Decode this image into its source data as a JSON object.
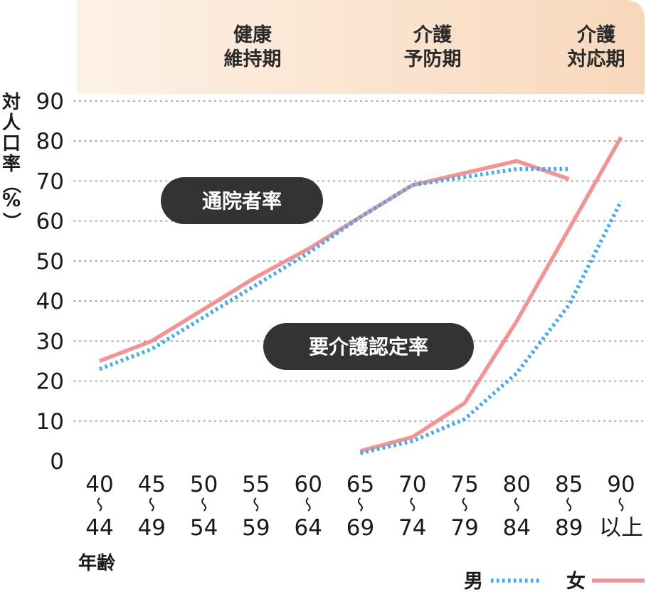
{
  "chart_data": {
    "type": "line",
    "title": "",
    "ylabel": "対人口率（%）",
    "xlabel": "年齢",
    "ylim": [
      0,
      90
    ],
    "y_ticks": [
      "0",
      "10",
      "20",
      "30",
      "40",
      "50",
      "60",
      "70",
      "80",
      "90"
    ],
    "grid": "horizontal dotted",
    "categories": [
      {
        "top": "40",
        "bottom": "44"
      },
      {
        "top": "45",
        "bottom": "49"
      },
      {
        "top": "50",
        "bottom": "54"
      },
      {
        "top": "55",
        "bottom": "59"
      },
      {
        "top": "60",
        "bottom": "64"
      },
      {
        "top": "65",
        "bottom": "69"
      },
      {
        "top": "70",
        "bottom": "74"
      },
      {
        "top": "75",
        "bottom": "79"
      },
      {
        "top": "80",
        "bottom": "84"
      },
      {
        "top": "85",
        "bottom": "89"
      },
      {
        "top": "90",
        "bottom": "以上"
      }
    ],
    "stages": [
      {
        "line1": "健康",
        "line2": "維持期"
      },
      {
        "line1": "介護",
        "line2": "予防期"
      },
      {
        "line1": "介護",
        "line2": "対応期"
      }
    ],
    "stage_band_color": "#fbe3cc",
    "groups": [
      {
        "label": "通院者率",
        "series": [
          {
            "name": "男",
            "values": [
              23,
              28,
              36,
              44,
              52,
              61,
              69,
              71,
              73,
              73,
              null
            ]
          },
          {
            "name": "女",
            "values": [
              25,
              30,
              38,
              46,
              53,
              61,
              69,
              72,
              75,
              70.5,
              null
            ]
          }
        ]
      },
      {
        "label": "要介護認定率",
        "series": [
          {
            "name": "男",
            "values": [
              null,
              null,
              null,
              null,
              null,
              2,
              5,
              10.5,
              22,
              39,
              65
            ]
          },
          {
            "name": "女",
            "values": [
              null,
              null,
              null,
              null,
              null,
              2.5,
              6,
              14.5,
              35,
              58,
              81
            ]
          }
        ]
      }
    ],
    "legend": [
      {
        "name": "男",
        "style": "dotted",
        "color": "#3fa9f5"
      },
      {
        "name": "女",
        "style": "solid",
        "color": "#f19494"
      }
    ],
    "legend_position": "bottom-right",
    "colors": {
      "male": "#3fa9f5",
      "female": "#f19494",
      "pill": "#333333"
    }
  }
}
